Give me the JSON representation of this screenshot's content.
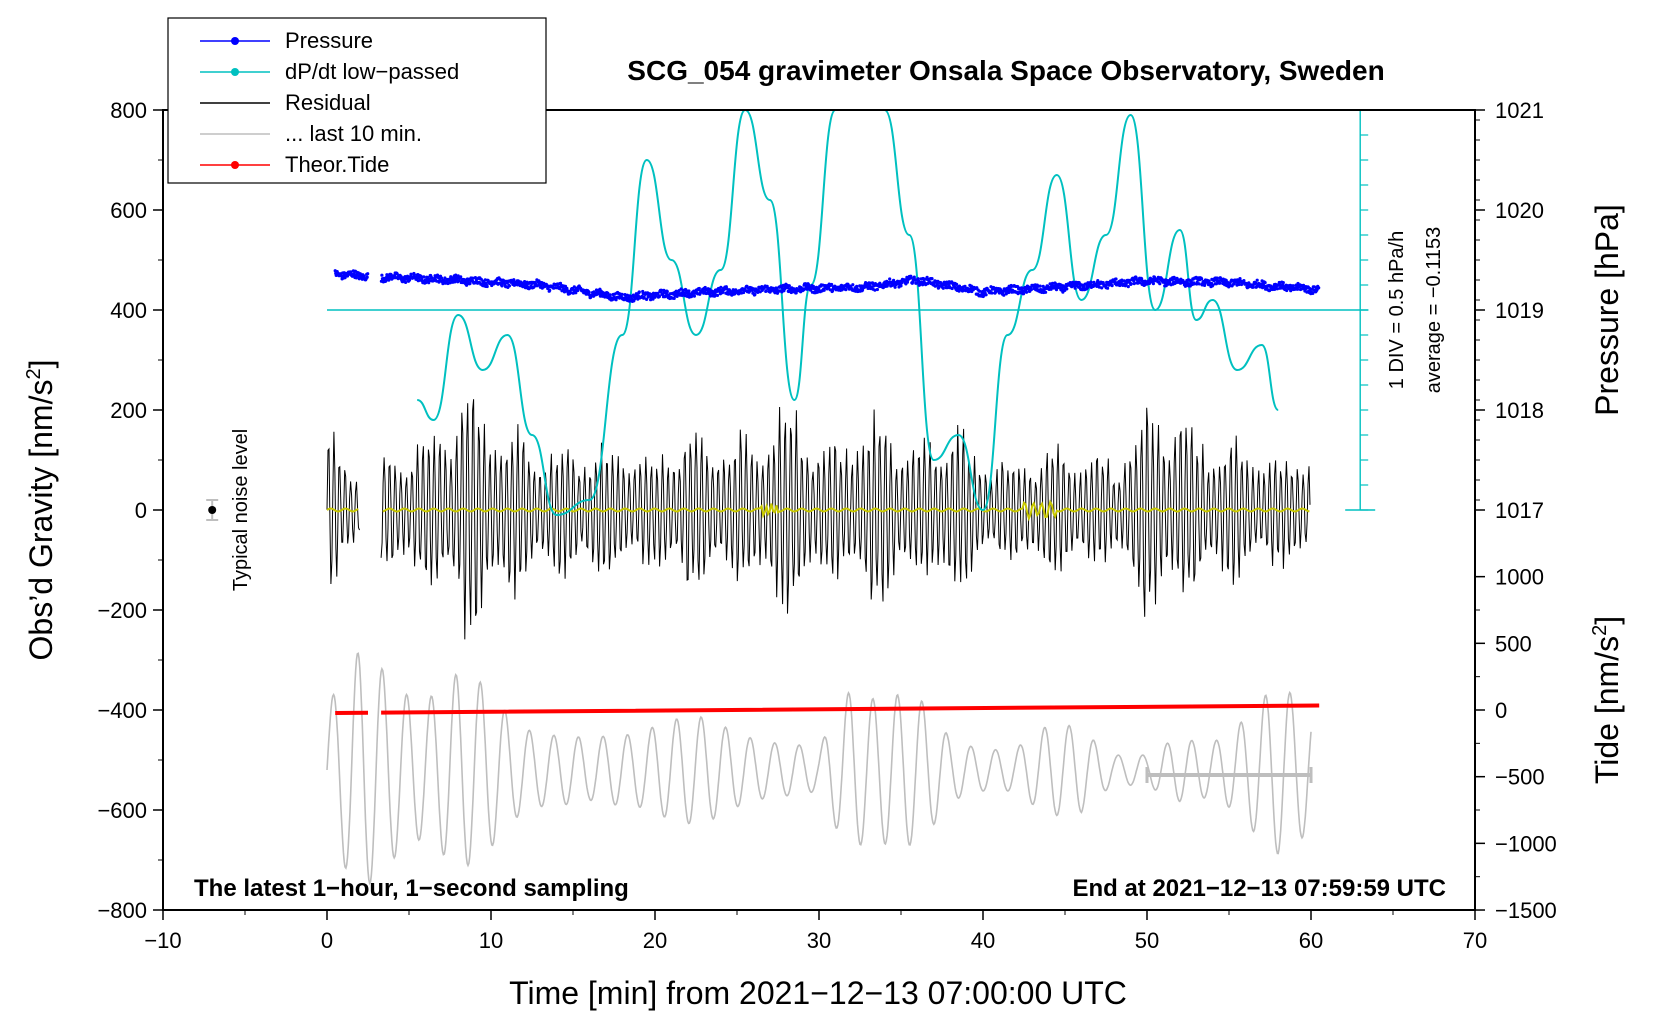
{
  "chart_data": {
    "type": "line",
    "title": "SCG_054 gravimeter Onsala Space Observatory, Sweden",
    "xlabel": "Time [min] from 2021−12−13 07:00:00 UTC",
    "ylabel_left_main": "Obs’d Gravity [nm/s",
    "ylabel_left_sup": "2",
    "ylabel_left_tail": "]",
    "ylabel_right_top": "Pressure [hPa]",
    "ylabel_right_bottom_main": "Tide [nm/s",
    "ylabel_right_bottom_sup": "2",
    "ylabel_right_bottom_tail": "]",
    "xlim": [
      -10,
      70
    ],
    "ylim": [
      -800,
      800
    ],
    "x_ticks": [
      -10,
      0,
      10,
      20,
      30,
      40,
      50,
      60,
      70
    ],
    "x_tick_labels": [
      "−10",
      "0",
      "10",
      "20",
      "30",
      "40",
      "50",
      "60",
      "70"
    ],
    "y_ticks": [
      800,
      600,
      400,
      200,
      0,
      -200,
      -400,
      -600,
      -800
    ],
    "y_tick_labels": [
      "800",
      "600",
      "400",
      "200",
      "0",
      "−200",
      "−400",
      "−600",
      "−800"
    ],
    "pressure_axis": {
      "ticks": [
        1021,
        1020,
        1019,
        1018,
        1017
      ],
      "labels": [
        "1021",
        "1020",
        "1019",
        "1018",
        "1017"
      ],
      "gravity_at_1019": 400,
      "nms2_per_hPa": 200
    },
    "tide_axis": {
      "ticks": [
        1000,
        500,
        0,
        -500,
        -1000,
        -1500
      ],
      "labels": [
        "1000",
        "500",
        "0",
        "−500",
        "−1000",
        "−1500"
      ],
      "gravity_at_0": -400,
      "gravity_per_unit": 0.2667
    },
    "legend": [
      {
        "label": "Pressure",
        "color": "#0000ff",
        "marker": true
      },
      {
        "label": "dP/dt low−passed",
        "color": "#00c0c0",
        "marker": true
      },
      {
        "label": "Residual",
        "color": "#000000",
        "marker": false
      },
      {
        "label": "... last 10 min.",
        "color": "#bebebe",
        "marker": false
      },
      {
        "label": "Theor.Tide",
        "color": "#ff0000",
        "marker": true
      }
    ],
    "series": [
      {
        "name": "Pressure",
        "color": "#0000ff",
        "unit": "gravity-axis nm/s2",
        "x": [
          0.5,
          2.5,
          3.5,
          8,
          13,
          18,
          23,
          28,
          33,
          36,
          40,
          45,
          50,
          55,
          60
        ],
        "y": [
          472,
          468,
          466,
          460,
          450,
          425,
          436,
          442,
          446,
          460,
          436,
          446,
          458,
          455,
          442
        ],
        "gap": [
          2.5,
          3.3
        ]
      },
      {
        "name": "dP/dt low-passed",
        "color": "#00c0c0",
        "unit": "gravity-axis nm/s2",
        "x": [
          5.5,
          6.5,
          8,
          9.5,
          11,
          12.5,
          14,
          16,
          18,
          19.5,
          21,
          22.5,
          24,
          25.5,
          27,
          28.5,
          29.5,
          31,
          32,
          33,
          34,
          35.5,
          37,
          38.5,
          40,
          41.5,
          43,
          44.5,
          46,
          47.5,
          49,
          50.5,
          52,
          53,
          54,
          55.5,
          57,
          58
        ],
        "y": [
          220,
          180,
          390,
          280,
          350,
          150,
          -10,
          20,
          350,
          700,
          500,
          350,
          480,
          800,
          620,
          220,
          450,
          800,
          800,
          800,
          800,
          550,
          100,
          150,
          0,
          350,
          480,
          670,
          420,
          550,
          790,
          400,
          560,
          380,
          420,
          280,
          330,
          200
        ]
      },
      {
        "name": "Residual",
        "color": "#000000",
        "envelope_x": [
          0,
          1,
          2,
          3.5,
          5,
          7,
          8.5,
          10,
          12,
          14,
          16,
          18,
          20,
          22,
          24,
          26,
          28.5,
          30,
          32,
          34,
          36,
          38,
          40,
          42,
          44,
          46,
          48,
          50,
          52,
          54,
          56,
          58,
          60
        ],
        "envelope_amp": [
          220,
          100,
          100,
          130,
          160,
          190,
          300,
          230,
          170,
          140,
          160,
          150,
          120,
          200,
          180,
          170,
          260,
          150,
          190,
          230,
          140,
          210,
          130,
          110,
          170,
          140,
          120,
          250,
          220,
          170,
          150,
          120,
          160
        ],
        "gap": [
          2,
          3.3
        ]
      },
      {
        "name": "Low-passed residual",
        "color": "#c8c800",
        "x": [
          0,
          60
        ],
        "y": [
          0,
          0
        ]
      },
      {
        "name": "... last 10 min.",
        "color": "#bebebe",
        "baseline": -520,
        "envelope_x": [
          0,
          2,
          4,
          6,
          8,
          10,
          12,
          14,
          16,
          18,
          20,
          22,
          24,
          26,
          28,
          30,
          32,
          34,
          36,
          38,
          40,
          42,
          44,
          46,
          48,
          50,
          52,
          54,
          56,
          58,
          60
        ],
        "envelope_amp": [
          150,
          240,
          230,
          190,
          200,
          170,
          120,
          80,
          60,
          90,
          120,
          110,
          100,
          90,
          60,
          40,
          210,
          200,
          150,
          70,
          60,
          50,
          90,
          110,
          40,
          30,
          70,
          80,
          120,
          170,
          160
        ]
      },
      {
        "name": "Theor.Tide",
        "color": "#ff0000",
        "unit": "gravity-axis nm/s2",
        "x": [
          0.5,
          60.5
        ],
        "y": [
          -406,
          -391
        ],
        "gap": [
          2.5,
          3.3
        ]
      }
    ],
    "typical_noise": {
      "label": "Typical noise level",
      "x": -7,
      "y": 0,
      "err": 20
    },
    "last10_bar": {
      "x_start": 50,
      "x_end": 60,
      "y": -530
    },
    "cyan_baseline": 400,
    "cyan_scale": {
      "x_pos": 63,
      "from": 0,
      "to": 800
    },
    "scale_text_1": "1 DIV = 0.5 hPa/h",
    "scale_text_2": "average = −0.1153",
    "bottom_left_note": "The latest 1−hour, 1−second sampling",
    "bottom_right_note": "End at 2021−12−13 07:59:59 UTC"
  }
}
